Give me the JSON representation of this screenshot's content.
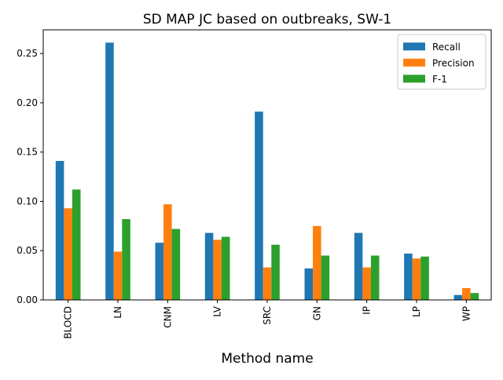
{
  "chart_data": {
    "type": "bar",
    "title": "SD MAP JC based on outbreaks, SW-1",
    "xlabel": "Method name",
    "ylabel": "",
    "ylim": [
      0,
      0.274
    ],
    "yticks": [
      0.0,
      0.05,
      0.1,
      0.15,
      0.2,
      0.25
    ],
    "ytick_labels": [
      "0.00",
      "0.05",
      "0.10",
      "0.15",
      "0.20",
      "0.25"
    ],
    "categories": [
      "BLOCD",
      "LN",
      "CNM",
      "LV",
      "SRC",
      "GN",
      "IP",
      "LP",
      "WP"
    ],
    "series": [
      {
        "name": "Recall",
        "color": "#1f77b4",
        "values": [
          0.141,
          0.261,
          0.058,
          0.068,
          0.191,
          0.032,
          0.068,
          0.047,
          0.005
        ]
      },
      {
        "name": "Precision",
        "color": "#ff7f0e",
        "values": [
          0.093,
          0.049,
          0.097,
          0.061,
          0.033,
          0.075,
          0.033,
          0.042,
          0.012
        ]
      },
      {
        "name": "F-1",
        "color": "#2ca02c",
        "values": [
          0.112,
          0.082,
          0.072,
          0.064,
          0.056,
          0.045,
          0.045,
          0.044,
          0.007
        ]
      }
    ],
    "legend_position": "top-right",
    "grid": false
  }
}
